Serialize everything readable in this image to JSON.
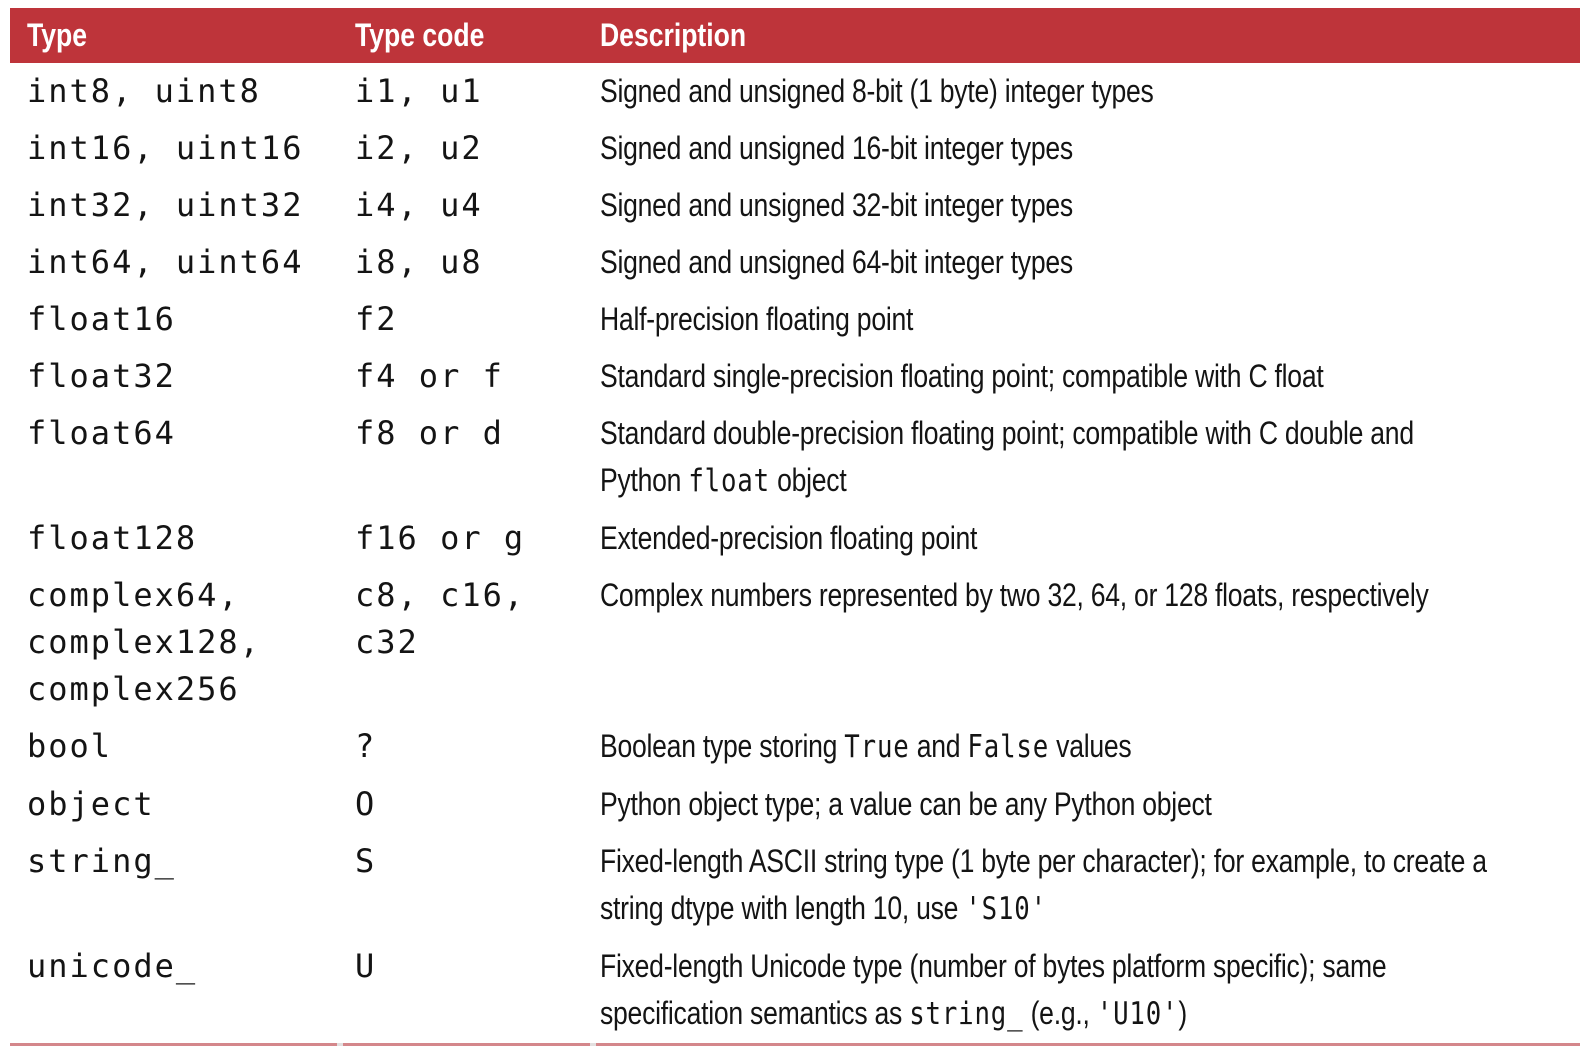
{
  "colors": {
    "header_bg": "#be343a",
    "header_text": "#ffffff",
    "body_text": "#141414",
    "bottom_rule": "#d4878b",
    "column_divider": "#e2dfdf",
    "page_background": "#ffffff"
  },
  "table": {
    "columns": [
      {
        "key": "type",
        "label": "Type"
      },
      {
        "key": "type-code",
        "label": "Type code"
      },
      {
        "key": "description",
        "label": "Description"
      }
    ],
    "rows": [
      {
        "type": "int8, uint8",
        "code": "i1, u1",
        "desc": [
          {
            "t": "Signed and unsigned 8-bit (1 byte) integer types"
          }
        ]
      },
      {
        "type": "int16, uint16",
        "code": "i2, u2",
        "desc": [
          {
            "t": "Signed and unsigned 16-bit integer types"
          }
        ]
      },
      {
        "type": "int32, uint32",
        "code": "i4, u4",
        "desc": [
          {
            "t": "Signed and unsigned 32-bit integer types"
          }
        ]
      },
      {
        "type": "int64, uint64",
        "code": "i8, u8",
        "desc": [
          {
            "t": "Signed and unsigned 64-bit integer types"
          }
        ]
      },
      {
        "type": "float16",
        "code": "f2",
        "desc": [
          {
            "t": "Half-precision floating point"
          }
        ]
      },
      {
        "type": "float32",
        "code": "f4 or f",
        "desc": [
          {
            "t": "Standard single-precision floating point; compatible with C float"
          }
        ]
      },
      {
        "type": "float64",
        "code": "f8 or d",
        "desc": [
          {
            "t": "Standard double-precision floating point; compatible with C double and\nPython "
          },
          {
            "t": "float",
            "mono": true
          },
          {
            "t": " object"
          }
        ]
      },
      {
        "type": "float128",
        "code": "f16 or g",
        "desc": [
          {
            "t": "Extended-precision floating point"
          }
        ]
      },
      {
        "type": "complex64,\ncomplex128,\ncomplex256",
        "code": "c8, c16,\nc32",
        "desc": [
          {
            "t": "Complex numbers represented by two 32, 64, or 128 floats, respectively"
          }
        ]
      },
      {
        "type": "bool",
        "code": "?",
        "desc": [
          {
            "t": "Boolean type storing "
          },
          {
            "t": "True",
            "mono": true
          },
          {
            "t": " and "
          },
          {
            "t": "False",
            "mono": true
          },
          {
            "t": " values"
          }
        ]
      },
      {
        "type": "object",
        "code": "O",
        "desc": [
          {
            "t": "Python object type; a value can be any Python object"
          }
        ]
      },
      {
        "type": "string_",
        "code": "S",
        "desc": [
          {
            "t": "Fixed-length ASCII string type (1 byte per character); for example, to create a\nstring dtype with length 10, use "
          },
          {
            "t": "'S10'",
            "mono": true
          }
        ]
      },
      {
        "type": "unicode_",
        "code": "U",
        "desc": [
          {
            "t": "Fixed-length Unicode type (number of bytes platform specific); same\nspecification semantics as "
          },
          {
            "t": "string_",
            "mono": true
          },
          {
            "t": " (e.g., "
          },
          {
            "t": "'U10'",
            "mono": true
          },
          {
            "t": ")"
          }
        ]
      }
    ]
  }
}
